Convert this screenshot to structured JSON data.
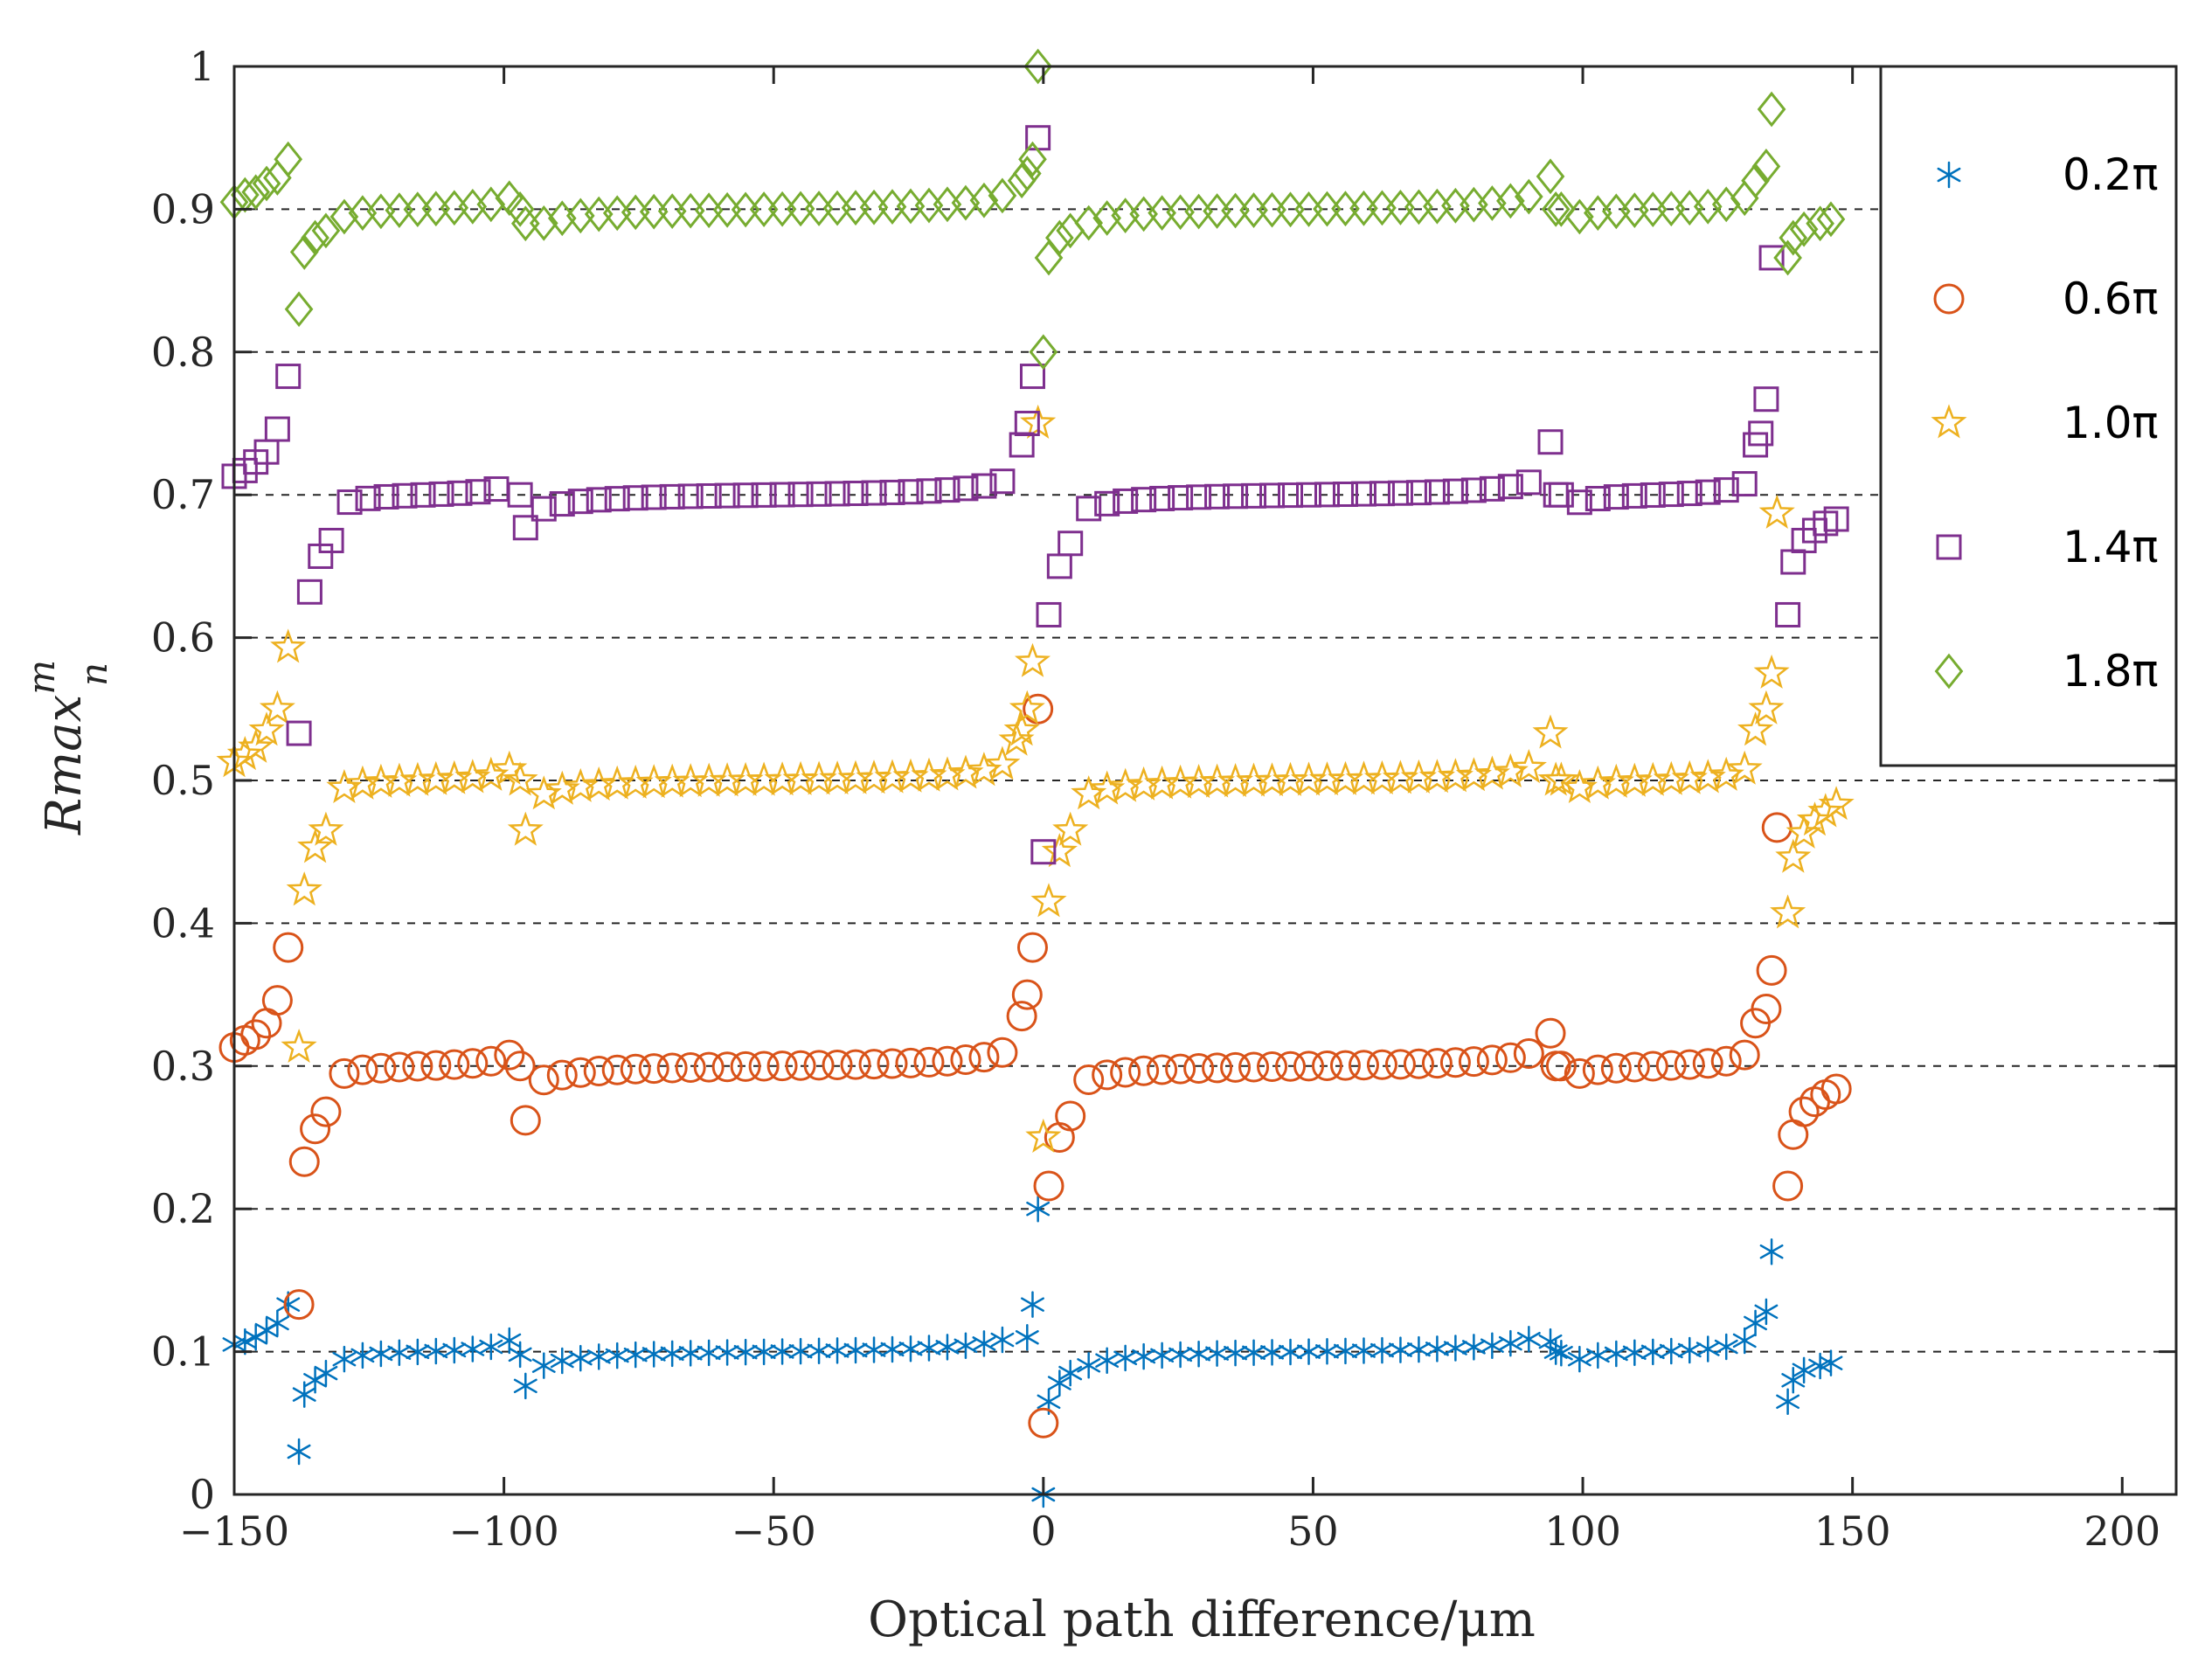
{
  "chart_data": {
    "type": "scatter",
    "title": "",
    "xlabel": "Optical path difference/μm",
    "ylabel_base": "Rmax",
    "ylabel_sup": "m",
    "ylabel_sub": "n",
    "xlim": [
      -150,
      210
    ],
    "ylim": [
      0,
      1
    ],
    "xticks": [
      -150,
      -100,
      -50,
      0,
      50,
      100,
      150,
      200
    ],
    "xtick_labels": [
      "−150",
      "−100",
      "−50",
      "0",
      "50",
      "100",
      "150",
      "200"
    ],
    "yticks": [
      0,
      0.1,
      0.2,
      0.3,
      0.4,
      0.5,
      0.6,
      0.7,
      0.8,
      0.9,
      1
    ],
    "ytick_labels": [
      "0",
      "0.1",
      "0.2",
      "0.3",
      "0.4",
      "0.5",
      "0.6",
      "0.7",
      "0.8",
      "0.9",
      "1"
    ],
    "grid": "horizontal dashed",
    "legend_position": "top-right",
    "series": [
      {
        "name": "0.2π",
        "marker": "asterisk",
        "color": "#0072BD",
        "base": 0.1,
        "points": [
          [
            -150,
            0.105
          ],
          [
            -148,
            0.107
          ],
          [
            -146,
            0.11
          ],
          [
            -144,
            0.115
          ],
          [
            -142,
            0.12
          ],
          [
            -140,
            0.133
          ],
          [
            -138,
            0.03
          ],
          [
            -137,
            0.07
          ],
          [
            -135,
            0.08
          ],
          [
            -133,
            0.085
          ],
          [
            -97,
            0.098
          ],
          [
            -96,
            0.076
          ],
          [
            -3,
            0.11
          ],
          [
            -2,
            0.133
          ],
          [
            -1,
            0.2
          ],
          [
            0,
            0.0
          ],
          [
            1,
            0.065
          ],
          [
            3,
            0.078
          ],
          [
            5,
            0.085
          ],
          [
            94,
            0.107
          ],
          [
            95,
            0.1
          ],
          [
            96,
            0.099
          ],
          [
            132,
            0.12
          ],
          [
            134,
            0.128
          ],
          [
            135,
            0.17
          ],
          [
            138,
            0.065
          ],
          [
            139,
            0.08
          ],
          [
            141,
            0.087
          ],
          [
            144,
            0.09
          ],
          [
            146,
            0.092
          ]
        ]
      },
      {
        "name": "0.6π",
        "marker": "circle",
        "color": "#D95319",
        "base": 0.3,
        "points": [
          [
            -150,
            0.313
          ],
          [
            -148,
            0.318
          ],
          [
            -146,
            0.322
          ],
          [
            -144,
            0.33
          ],
          [
            -142,
            0.346
          ],
          [
            -140,
            0.383
          ],
          [
            -138,
            0.133
          ],
          [
            -137,
            0.233
          ],
          [
            -135,
            0.256
          ],
          [
            -133,
            0.268
          ],
          [
            -97,
            0.3
          ],
          [
            -96,
            0.262
          ],
          [
            -4,
            0.335
          ],
          [
            -3,
            0.35
          ],
          [
            -2,
            0.383
          ],
          [
            -1,
            0.55
          ],
          [
            0,
            0.05
          ],
          [
            1,
            0.216
          ],
          [
            3,
            0.25
          ],
          [
            5,
            0.265
          ],
          [
            94,
            0.323
          ],
          [
            95,
            0.3
          ],
          [
            96,
            0.3
          ],
          [
            132,
            0.33
          ],
          [
            134,
            0.34
          ],
          [
            135,
            0.367
          ],
          [
            136,
            0.467
          ],
          [
            138,
            0.216
          ],
          [
            139,
            0.252
          ],
          [
            141,
            0.268
          ],
          [
            143,
            0.275
          ],
          [
            145,
            0.28
          ],
          [
            147,
            0.284
          ]
        ]
      },
      {
        "name": "1.0π",
        "marker": "star",
        "color": "#EDB120",
        "base": 0.5,
        "points": [
          [
            -150,
            0.513
          ],
          [
            -148,
            0.518
          ],
          [
            -146,
            0.523
          ],
          [
            -144,
            0.535
          ],
          [
            -142,
            0.55
          ],
          [
            -140,
            0.593
          ],
          [
            -138,
            0.313
          ],
          [
            -137,
            0.423
          ],
          [
            -135,
            0.453
          ],
          [
            -133,
            0.465
          ],
          [
            -97,
            0.5
          ],
          [
            -96,
            0.465
          ],
          [
            -5,
            0.528
          ],
          [
            -4,
            0.535
          ],
          [
            -3,
            0.55
          ],
          [
            -2,
            0.583
          ],
          [
            -1,
            0.75
          ],
          [
            0,
            0.25
          ],
          [
            1,
            0.415
          ],
          [
            3,
            0.45
          ],
          [
            5,
            0.465
          ],
          [
            94,
            0.533
          ],
          [
            95,
            0.5
          ],
          [
            96,
            0.5
          ],
          [
            132,
            0.535
          ],
          [
            134,
            0.55
          ],
          [
            135,
            0.575
          ],
          [
            136,
            0.687
          ],
          [
            138,
            0.407
          ],
          [
            139,
            0.446
          ],
          [
            141,
            0.463
          ],
          [
            143,
            0.472
          ],
          [
            145,
            0.478
          ],
          [
            147,
            0.483
          ]
        ]
      },
      {
        "name": "1.4π",
        "marker": "square",
        "color": "#7E2F8E",
        "base": 0.7,
        "points": [
          [
            -150,
            0.713
          ],
          [
            -148,
            0.717
          ],
          [
            -146,
            0.723
          ],
          [
            -144,
            0.73
          ],
          [
            -142,
            0.746
          ],
          [
            -140,
            0.783
          ],
          [
            -138,
            0.533
          ],
          [
            -136,
            0.632
          ],
          [
            -134,
            0.657
          ],
          [
            -132,
            0.668
          ],
          [
            -97,
            0.7
          ],
          [
            -96,
            0.677
          ],
          [
            -4,
            0.735
          ],
          [
            -3,
            0.75
          ],
          [
            -2,
            0.783
          ],
          [
            -1,
            0.95
          ],
          [
            0,
            0.45
          ],
          [
            1,
            0.616
          ],
          [
            3,
            0.65
          ],
          [
            5,
            0.666
          ],
          [
            94,
            0.737
          ],
          [
            95,
            0.7
          ],
          [
            96,
            0.7
          ],
          [
            132,
            0.735
          ],
          [
            133,
            0.743
          ],
          [
            134,
            0.767
          ],
          [
            135,
            0.866
          ],
          [
            138,
            0.616
          ],
          [
            139,
            0.653
          ],
          [
            141,
            0.668
          ],
          [
            143,
            0.675
          ],
          [
            145,
            0.68
          ],
          [
            147,
            0.683
          ]
        ]
      },
      {
        "name": "1.8π",
        "marker": "diamond",
        "color": "#77AC30",
        "base": 0.9,
        "points": [
          [
            -150,
            0.905
          ],
          [
            -148,
            0.91
          ],
          [
            -146,
            0.912
          ],
          [
            -144,
            0.918
          ],
          [
            -142,
            0.922
          ],
          [
            -140,
            0.935
          ],
          [
            -138,
            0.83
          ],
          [
            -137,
            0.87
          ],
          [
            -135,
            0.88
          ],
          [
            -133,
            0.885
          ],
          [
            -97,
            0.9
          ],
          [
            -96,
            0.89
          ],
          [
            -4,
            0.92
          ],
          [
            -3,
            0.925
          ],
          [
            -2,
            0.935
          ],
          [
            -1,
            1.0
          ],
          [
            0,
            0.8
          ],
          [
            1,
            0.866
          ],
          [
            3,
            0.88
          ],
          [
            5,
            0.885
          ],
          [
            94,
            0.923
          ],
          [
            95,
            0.9
          ],
          [
            96,
            0.9
          ],
          [
            132,
            0.92
          ],
          [
            134,
            0.93
          ],
          [
            135,
            0.97
          ],
          [
            138,
            0.866
          ],
          [
            139,
            0.88
          ],
          [
            141,
            0.886
          ],
          [
            144,
            0.89
          ],
          [
            146,
            0.893
          ]
        ]
      }
    ]
  }
}
